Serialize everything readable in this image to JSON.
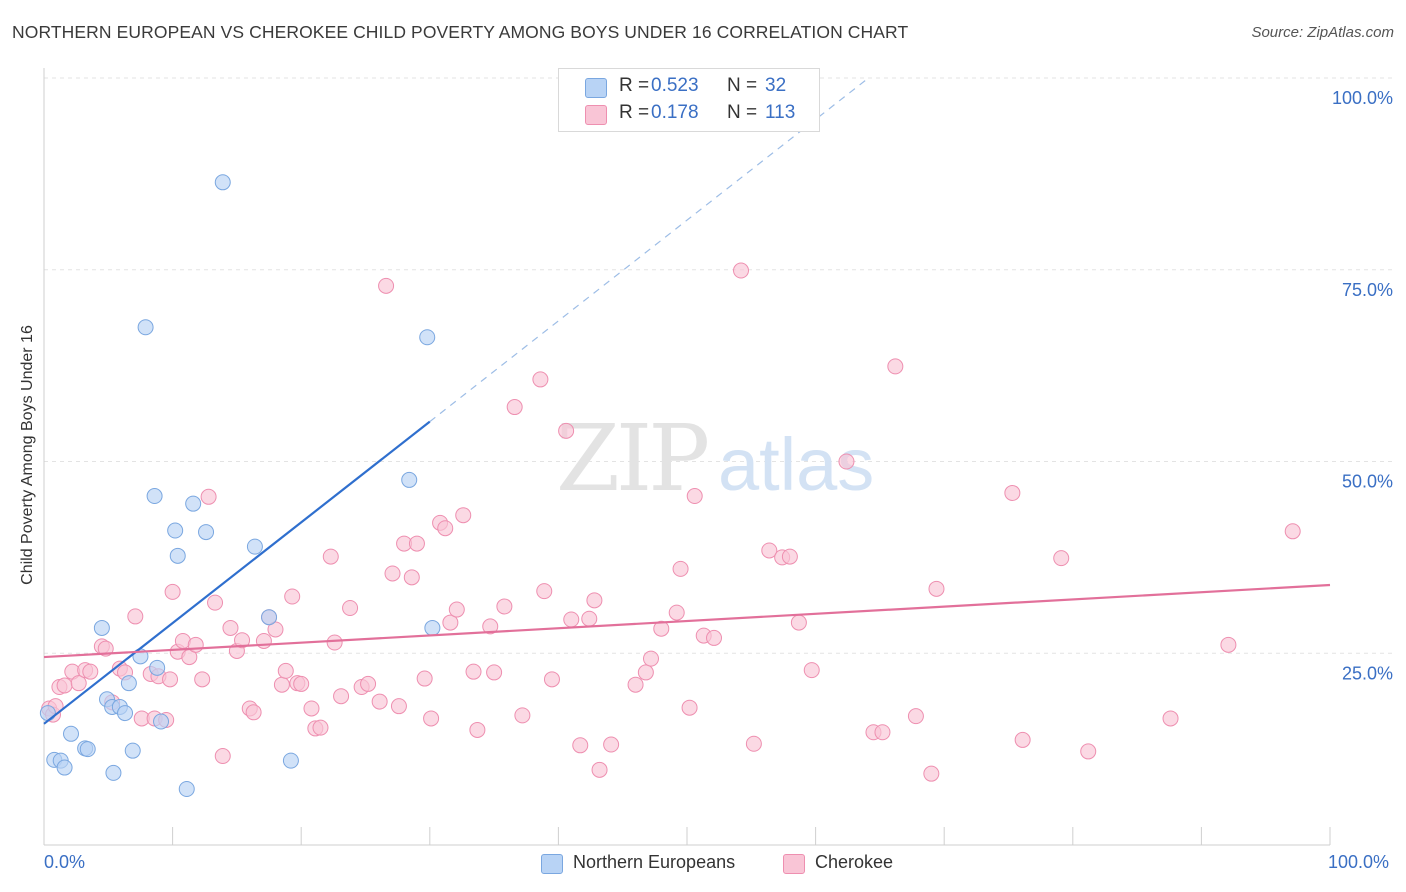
{
  "header": {
    "title": "NORTHERN EUROPEAN VS CHEROKEE CHILD POVERTY AMONG BOYS UNDER 16 CORRELATION CHART",
    "source": "Source: ZipAtlas.com"
  },
  "watermark": {
    "zip": "ZIP",
    "atlas": "atlas"
  },
  "legend": {
    "rows": [
      {
        "r_label": "R =",
        "r_value": "0.523",
        "n_label": "N =",
        "n_value": "32",
        "color": "#b8d3f5",
        "stroke": "#7aa7e0"
      },
      {
        "r_label": "R =",
        "r_value": "0.178",
        "n_label": "N =",
        "n_value": "113",
        "color": "#f9c5d6",
        "stroke": "#ee8fb0"
      }
    ]
  },
  "bottom_legend": {
    "items": [
      {
        "label": "Northern Europeans",
        "color": "#b8d3f5",
        "stroke": "#7aa7e0"
      },
      {
        "label": "Cherokee",
        "color": "#f9c5d6",
        "stroke": "#ee8fb0"
      }
    ]
  },
  "chart_data": {
    "type": "scatter",
    "title": "NORTHERN EUROPEAN VS CHEROKEE CHILD POVERTY AMONG BOYS UNDER 16 CORRELATION CHART",
    "xlabel": "",
    "ylabel": "Child Poverty Among Boys Under 16",
    "xlim": [
      0,
      100
    ],
    "ylim": [
      0,
      100
    ],
    "x_tick_labels": [
      "0.0%",
      "100.0%"
    ],
    "y_tick_labels": [
      "25.0%",
      "50.0%",
      "75.0%",
      "100.0%"
    ],
    "y_ticks": [
      25,
      50,
      75,
      100
    ],
    "grid": true,
    "legend_placement": "top-center",
    "series": [
      {
        "name": "Northern Europeans",
        "color": "#7aa7e0",
        "fill": "#b8d3f5",
        "R": 0.523,
        "N": 32,
        "trend": {
          "x": [
            0,
            30
          ],
          "y": [
            15.8,
            55.2
          ],
          "dashed_to": [
            64,
            100
          ]
        },
        "points": [
          [
            0.3,
            17.2
          ],
          [
            0.8,
            11.1
          ],
          [
            1.3,
            11.0
          ],
          [
            1.6,
            10.1
          ],
          [
            2.1,
            14.5
          ],
          [
            3.2,
            12.6
          ],
          [
            3.4,
            12.5
          ],
          [
            4.5,
            28.3
          ],
          [
            4.9,
            19.0
          ],
          [
            5.3,
            18.0
          ],
          [
            5.9,
            18.0
          ],
          [
            5.4,
            9.4
          ],
          [
            6.3,
            17.2
          ],
          [
            6.6,
            21.1
          ],
          [
            6.9,
            12.3
          ],
          [
            7.5,
            24.6
          ],
          [
            7.9,
            67.5
          ],
          [
            8.6,
            45.5
          ],
          [
            8.8,
            23.1
          ],
          [
            9.1,
            16.1
          ],
          [
            10.2,
            41.0
          ],
          [
            10.4,
            37.7
          ],
          [
            11.1,
            7.3
          ],
          [
            11.6,
            44.5
          ],
          [
            12.6,
            40.8
          ],
          [
            13.9,
            86.4
          ],
          [
            16.4,
            38.9
          ],
          [
            17.5,
            29.7
          ],
          [
            19.2,
            11.0
          ],
          [
            30.2,
            28.3
          ],
          [
            28.4,
            47.6
          ],
          [
            29.8,
            66.2
          ]
        ]
      },
      {
        "name": "Cherokee",
        "color": "#ee8fb0",
        "fill": "#f9c5d6",
        "R": 0.178,
        "N": 113,
        "trend": {
          "x": [
            0,
            100
          ],
          "y": [
            24.5,
            33.9
          ]
        },
        "points": [
          [
            0.4,
            17.8
          ],
          [
            0.7,
            17.0
          ],
          [
            0.9,
            18.1
          ],
          [
            1.2,
            20.6
          ],
          [
            1.6,
            20.8
          ],
          [
            2.2,
            22.6
          ],
          [
            2.7,
            21.1
          ],
          [
            3.2,
            22.8
          ],
          [
            3.6,
            22.6
          ],
          [
            4.5,
            25.9
          ],
          [
            4.8,
            25.6
          ],
          [
            5.3,
            18.6
          ],
          [
            5.9,
            23.0
          ],
          [
            6.3,
            22.5
          ],
          [
            7.1,
            29.8
          ],
          [
            7.6,
            16.5
          ],
          [
            8.3,
            22.3
          ],
          [
            8.6,
            16.5
          ],
          [
            8.9,
            22.0
          ],
          [
            9.5,
            16.3
          ],
          [
            9.8,
            21.6
          ],
          [
            10.0,
            33.0
          ],
          [
            10.4,
            25.2
          ],
          [
            10.8,
            26.6
          ],
          [
            11.3,
            24.5
          ],
          [
            11.8,
            26.1
          ],
          [
            12.3,
            21.6
          ],
          [
            12.8,
            45.4
          ],
          [
            13.3,
            31.6
          ],
          [
            13.9,
            11.6
          ],
          [
            14.5,
            28.3
          ],
          [
            15.0,
            25.3
          ],
          [
            15.4,
            26.7
          ],
          [
            16.0,
            17.8
          ],
          [
            16.3,
            17.3
          ],
          [
            17.1,
            26.6
          ],
          [
            17.5,
            29.7
          ],
          [
            18.0,
            28.1
          ],
          [
            18.5,
            20.9
          ],
          [
            18.8,
            22.7
          ],
          [
            19.3,
            32.4
          ],
          [
            19.7,
            21.1
          ],
          [
            20.0,
            21.0
          ],
          [
            20.8,
            17.8
          ],
          [
            21.1,
            15.2
          ],
          [
            21.5,
            15.3
          ],
          [
            22.3,
            37.6
          ],
          [
            22.6,
            26.4
          ],
          [
            23.1,
            19.4
          ],
          [
            23.8,
            30.9
          ],
          [
            24.7,
            20.6
          ],
          [
            25.2,
            21.0
          ],
          [
            26.1,
            18.7
          ],
          [
            26.6,
            72.9
          ],
          [
            27.1,
            35.4
          ],
          [
            27.6,
            18.1
          ],
          [
            28.0,
            39.3
          ],
          [
            28.6,
            34.9
          ],
          [
            29.0,
            39.3
          ],
          [
            29.6,
            21.7
          ],
          [
            30.1,
            16.5
          ],
          [
            30.8,
            42.0
          ],
          [
            31.2,
            41.3
          ],
          [
            31.6,
            29.0
          ],
          [
            32.1,
            30.7
          ],
          [
            32.6,
            43.0
          ],
          [
            33.4,
            22.6
          ],
          [
            33.7,
            15.0
          ],
          [
            34.7,
            28.5
          ],
          [
            35.0,
            22.5
          ],
          [
            35.8,
            31.1
          ],
          [
            36.6,
            57.1
          ],
          [
            37.2,
            16.9
          ],
          [
            38.6,
            60.7
          ],
          [
            38.9,
            33.1
          ],
          [
            39.5,
            21.6
          ],
          [
            40.6,
            54.0
          ],
          [
            41.0,
            29.4
          ],
          [
            41.7,
            13.0
          ],
          [
            42.4,
            29.5
          ],
          [
            42.8,
            31.9
          ],
          [
            43.2,
            9.8
          ],
          [
            44.1,
            13.1
          ],
          [
            46.0,
            20.9
          ],
          [
            46.8,
            22.5
          ],
          [
            47.2,
            24.3
          ],
          [
            48.0,
            28.2
          ],
          [
            49.2,
            30.3
          ],
          [
            49.5,
            36.0
          ],
          [
            50.2,
            17.9
          ],
          [
            50.6,
            45.5
          ],
          [
            51.3,
            27.3
          ],
          [
            52.1,
            27.0
          ],
          [
            54.2,
            74.9
          ],
          [
            55.2,
            13.2
          ],
          [
            56.4,
            38.4
          ],
          [
            57.4,
            37.5
          ],
          [
            58.0,
            37.6
          ],
          [
            58.7,
            29.0
          ],
          [
            59.7,
            22.8
          ],
          [
            62.4,
            50.0
          ],
          [
            64.5,
            14.7
          ],
          [
            65.2,
            14.7
          ],
          [
            66.2,
            62.4
          ],
          [
            67.8,
            16.8
          ],
          [
            69.0,
            9.3
          ],
          [
            69.4,
            33.4
          ],
          [
            75.3,
            45.9
          ],
          [
            76.1,
            13.7
          ],
          [
            79.1,
            37.4
          ],
          [
            81.2,
            12.2
          ],
          [
            87.6,
            16.5
          ],
          [
            92.1,
            26.1
          ],
          [
            97.1,
            40.9
          ]
        ]
      }
    ]
  }
}
